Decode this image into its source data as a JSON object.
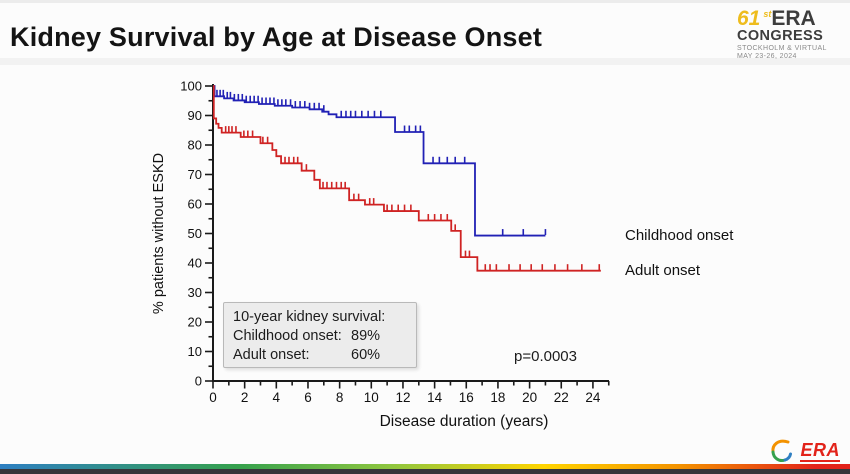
{
  "slide": {
    "title": "Kidney Survival by Age at Disease Onset",
    "congress_logo": {
      "number": "61",
      "number_suffix": "st",
      "org": "ERA",
      "line2": "CONGRESS",
      "line3": "STOCKHOLM & VIRTUAL",
      "line4": "MAY 23-26, 2024"
    },
    "footer_logo_text": "ERA"
  },
  "annotation_box": {
    "title": "10-year kidney survival:",
    "rows": [
      {
        "label": "Childhood onset:",
        "value": "89%"
      },
      {
        "label": "Adult onset:",
        "value": "60%"
      }
    ]
  },
  "p_value": "p=0.0003",
  "legend": [
    {
      "label": "Childhood onset",
      "color": "#2121b5"
    },
    {
      "label": "Adult onset",
      "color": "#cf2323"
    }
  ],
  "colors": {
    "childhood": "#2121b5",
    "adult": "#cf2323",
    "axis": "#1a1a1a",
    "congress_accent": "#eebc1d",
    "era_red": "#e2231a"
  },
  "chart_data": {
    "type": "line",
    "subtype": "kaplan-meier-step",
    "title": "",
    "xlabel": "Disease duration (years)",
    "ylabel": "% patients without ESKD",
    "xlim": [
      0,
      25
    ],
    "ylim": [
      0,
      100
    ],
    "x_ticks_major": [
      0,
      2,
      4,
      6,
      8,
      10,
      12,
      14,
      16,
      18,
      20,
      22,
      24
    ],
    "x_tick_minor_step": 1,
    "y_ticks_major": [
      0,
      10,
      20,
      30,
      40,
      50,
      60,
      70,
      80,
      90,
      100
    ],
    "y_tick_minor_step": 5,
    "grid": false,
    "legend_position": "right-of-curve-ends",
    "series": [
      {
        "name": "Childhood onset",
        "color": "#2121b5",
        "steps": [
          [
            0,
            100
          ],
          [
            0.1,
            96.5
          ],
          [
            0.7,
            95.8
          ],
          [
            1.3,
            95.1
          ],
          [
            2.0,
            94.5
          ],
          [
            2.9,
            93.9
          ],
          [
            3.9,
            93.3
          ],
          [
            5.0,
            92.7
          ],
          [
            6.1,
            92.1
          ],
          [
            6.9,
            91.3
          ],
          [
            7.3,
            90.4
          ],
          [
            7.8,
            89.4
          ],
          [
            11.5,
            84.4
          ],
          [
            13.3,
            73.8
          ],
          [
            16.55,
            49.3
          ],
          [
            21.0,
            49.3
          ]
        ],
        "censor_marks_x": [
          0.25,
          0.45,
          0.65,
          0.9,
          1.1,
          1.35,
          1.6,
          1.85,
          2.1,
          2.35,
          2.6,
          2.85,
          3.1,
          3.35,
          3.6,
          3.85,
          4.1,
          4.35,
          4.6,
          4.9,
          5.2,
          5.5,
          5.8,
          6.1,
          6.4,
          6.7,
          7.0,
          8.1,
          8.4,
          8.7,
          9.0,
          9.4,
          9.8,
          10.2,
          10.6,
          12.1,
          12.4,
          12.8,
          13.1,
          13.9,
          14.3,
          14.8,
          15.3,
          15.9,
          18.3,
          19.6,
          21.0
        ],
        "ten_year_survival_pct": 89
      },
      {
        "name": "Adult onset",
        "color": "#cf2323",
        "steps": [
          [
            0,
            100
          ],
          [
            0.05,
            89.0
          ],
          [
            0.2,
            87.2
          ],
          [
            0.35,
            85.8
          ],
          [
            0.55,
            84.2
          ],
          [
            1.75,
            82.7
          ],
          [
            3.0,
            80.6
          ],
          [
            3.75,
            78.3
          ],
          [
            4.0,
            76.2
          ],
          [
            4.3,
            73.8
          ],
          [
            5.6,
            71.3
          ],
          [
            6.4,
            68.2
          ],
          [
            6.75,
            65.3
          ],
          [
            8.6,
            61.3
          ],
          [
            9.6,
            59.8
          ],
          [
            10.8,
            57.6
          ],
          [
            13.0,
            54.4
          ],
          [
            15.05,
            50.9
          ],
          [
            15.65,
            42.0
          ],
          [
            16.7,
            37.4
          ],
          [
            24.5,
            37.4
          ]
        ],
        "censor_marks_x": [
          0.8,
          1.0,
          1.2,
          1.45,
          1.95,
          2.2,
          2.5,
          3.15,
          3.45,
          4.55,
          4.8,
          5.1,
          5.35,
          5.9,
          6.95,
          7.2,
          7.5,
          7.8,
          8.1,
          8.35,
          8.9,
          9.2,
          9.9,
          10.15,
          11.0,
          11.3,
          11.7,
          12.1,
          12.5,
          13.6,
          14.0,
          14.4,
          14.8,
          15.3,
          15.95,
          16.2,
          17.2,
          17.5,
          17.9,
          18.7,
          19.4,
          20.1,
          20.8,
          21.6,
          22.4,
          23.3,
          24.4
        ],
        "ten_year_survival_pct": 60
      }
    ],
    "annotations": [
      {
        "text": "p=0.0003",
        "position": "lower-middle"
      },
      {
        "text": "10-year kidney survival: Childhood onset 89%, Adult onset 60%",
        "position": "lower-left-box"
      }
    ]
  }
}
